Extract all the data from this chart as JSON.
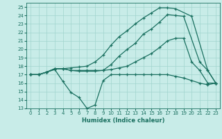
{
  "xlabel": "Humidex (Indice chaleur)",
  "xlim": [
    -0.5,
    23.5
  ],
  "ylim": [
    13,
    25.5
  ],
  "yticks": [
    13,
    14,
    15,
    16,
    17,
    18,
    19,
    20,
    21,
    22,
    23,
    24,
    25
  ],
  "xticks": [
    0,
    1,
    2,
    3,
    4,
    5,
    6,
    7,
    8,
    9,
    10,
    11,
    12,
    13,
    14,
    15,
    16,
    17,
    18,
    19,
    20,
    21,
    22,
    23
  ],
  "bg_color": "#c8ece8",
  "grid_color": "#a0d4ce",
  "line_color": "#1a7060",
  "lines": [
    {
      "x": [
        0,
        1,
        2,
        3,
        4,
        5,
        6,
        7,
        8,
        9,
        10,
        11,
        12,
        13,
        14,
        15,
        16,
        17,
        18,
        19,
        20,
        21,
        22,
        23
      ],
      "y": [
        17,
        17,
        17.3,
        17.6,
        16.2,
        14.9,
        14.3,
        13.0,
        13.4,
        16.3,
        17.0,
        17.0,
        17.0,
        17.0,
        17.0,
        17.0,
        17.0,
        17.0,
        16.8,
        16.6,
        16.3,
        16.0,
        15.8,
        16.0
      ]
    },
    {
      "x": [
        0,
        1,
        2,
        3,
        4,
        5,
        6,
        7,
        8,
        9,
        10,
        11,
        12,
        13,
        14,
        15,
        16,
        17,
        18,
        20,
        22,
        23
      ],
      "y": [
        17,
        17,
        17.3,
        17.7,
        17.7,
        17.8,
        17.9,
        18.0,
        18.5,
        19.3,
        20.5,
        21.5,
        22.2,
        23.0,
        23.7,
        24.3,
        24.9,
        24.9,
        24.8,
        23.9,
        17.5,
        16.0
      ]
    },
    {
      "x": [
        0,
        1,
        2,
        3,
        4,
        5,
        6,
        7,
        8,
        9,
        10,
        11,
        12,
        13,
        14,
        15,
        16,
        17,
        18,
        19,
        21,
        22,
        23
      ],
      "y": [
        17,
        17,
        17.3,
        17.7,
        17.7,
        17.5,
        17.5,
        17.5,
        17.5,
        17.5,
        18.2,
        19.2,
        20.0,
        20.7,
        21.8,
        22.4,
        23.2,
        24.1,
        24.0,
        23.9,
        18.5,
        17.5,
        16.0
      ]
    },
    {
      "x": [
        0,
        1,
        2,
        3,
        4,
        5,
        6,
        7,
        8,
        9,
        10,
        11,
        12,
        13,
        14,
        15,
        16,
        17,
        18,
        19,
        20,
        21,
        22,
        23
      ],
      "y": [
        17,
        17,
        17.3,
        17.7,
        17.7,
        17.5,
        17.4,
        17.4,
        17.4,
        17.5,
        17.6,
        17.8,
        18.0,
        18.5,
        19.0,
        19.5,
        20.2,
        21.0,
        21.3,
        21.3,
        18.5,
        17.5,
        16.0,
        16.0
      ]
    }
  ]
}
